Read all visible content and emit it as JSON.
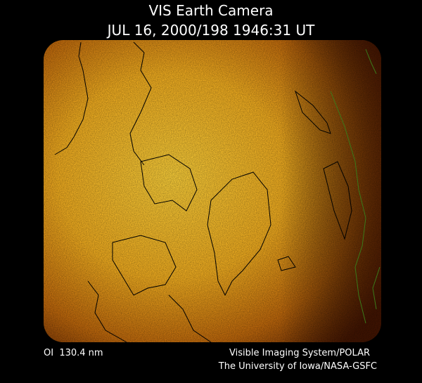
{
  "header": {
    "title": "VIS Earth Camera",
    "timestamp": "JUL 16, 2000/198 1946:31 UT"
  },
  "footer": {
    "wavelength": "OI  130.4 nm",
    "credit_line_1": "Visible Imaging System/POLAR",
    "credit_line_2": "The University of Iowa/NASA-GSFC"
  }
}
